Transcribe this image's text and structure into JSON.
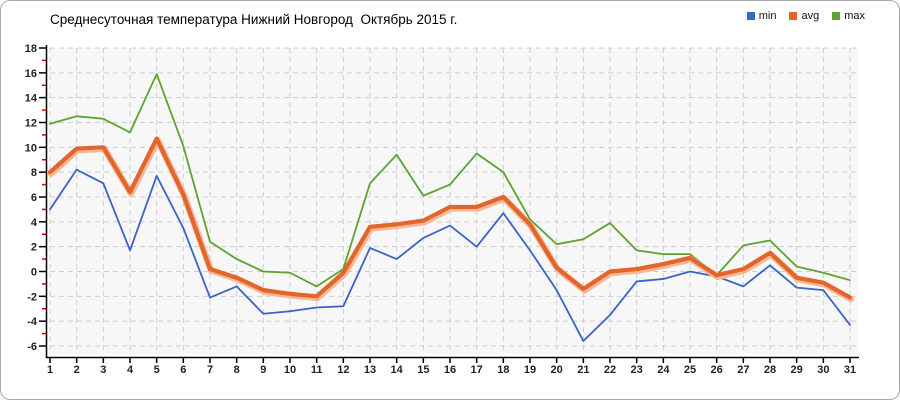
{
  "title": "Среднесуточная температура Нижний Новгород  Октябрь 2015 г.",
  "colors": {
    "plot_background": "#f7f7f7",
    "grid": "#cdcdcd",
    "axis": "#000000",
    "minor_tick": "#d40000",
    "avg_halo": "#f6b896"
  },
  "chart_data": {
    "type": "line",
    "title": "Среднесуточная температура Нижний Новгород  Октябрь 2015 г.",
    "xlabel": "",
    "ylabel": "",
    "x": [
      1,
      2,
      3,
      4,
      5,
      6,
      7,
      8,
      9,
      10,
      11,
      12,
      13,
      14,
      15,
      16,
      17,
      18,
      19,
      20,
      21,
      22,
      23,
      24,
      25,
      26,
      27,
      28,
      29,
      30,
      31
    ],
    "ylim": [
      -6,
      18
    ],
    "ytick_step": 2,
    "grid": true,
    "legend_position": "top-right",
    "series": [
      {
        "name": "min",
        "color": "#3a63c8",
        "values": [
          5.0,
          8.2,
          7.1,
          1.7,
          7.7,
          3.5,
          -2.1,
          -1.2,
          -3.4,
          -3.2,
          -2.9,
          -2.8,
          1.9,
          1.0,
          2.7,
          3.7,
          2.0,
          4.7,
          1.7,
          -1.5,
          -5.6,
          -3.5,
          -0.8,
          -0.6,
          0.0,
          -0.4,
          -1.2,
          0.5,
          -1.3,
          -1.5,
          -4.3
        ]
      },
      {
        "name": "avg",
        "color": "#e2662c",
        "values": [
          8.0,
          9.9,
          10.0,
          6.4,
          10.7,
          6.2,
          0.2,
          -0.5,
          -1.5,
          -1.8,
          -2.0,
          -0.1,
          3.6,
          3.8,
          4.1,
          5.2,
          5.2,
          6.0,
          3.8,
          0.3,
          -1.4,
          0.0,
          0.2,
          0.6,
          1.1,
          -0.3,
          0.2,
          1.5,
          -0.5,
          -0.9,
          -2.1
        ]
      },
      {
        "name": "max",
        "color": "#5da32e",
        "values": [
          11.9,
          12.5,
          12.3,
          11.2,
          15.9,
          10.1,
          2.4,
          1.0,
          0.0,
          -0.1,
          -1.2,
          0.2,
          7.1,
          9.4,
          6.1,
          7.0,
          9.5,
          8.0,
          4.2,
          2.2,
          2.6,
          3.9,
          1.7,
          1.4,
          1.4,
          -0.3,
          2.1,
          2.5,
          0.4,
          -0.1,
          -0.7
        ]
      }
    ]
  }
}
